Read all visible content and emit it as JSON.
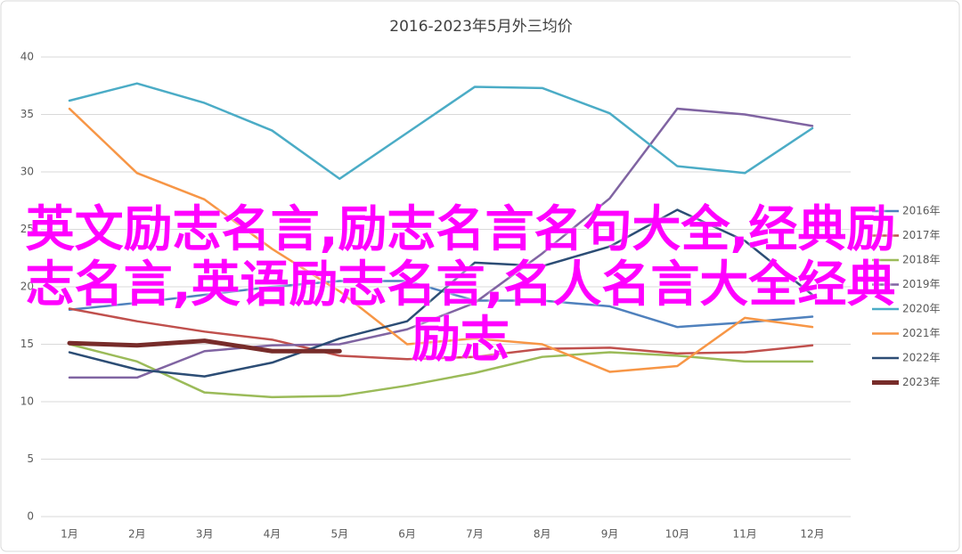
{
  "chart_data": {
    "type": "line",
    "title": "2016-2023年5月外三均价",
    "categories": [
      "1月",
      "2月",
      "3月",
      "4月",
      "5月",
      "6月",
      "7月",
      "8月",
      "9月",
      "10月",
      "11月",
      "12月"
    ],
    "series": [
      {
        "name": "2016年",
        "color": "#4f81bd",
        "values": [
          18.0,
          18.6,
          19.3,
          20.0,
          20.5,
          20.5,
          18.8,
          18.8,
          18.3,
          16.5,
          16.9,
          17.4
        ]
      },
      {
        "name": "2017年",
        "color": "#c0504d",
        "values": [
          18.1,
          17.0,
          16.1,
          15.4,
          14.0,
          13.7,
          13.9,
          14.6,
          14.7,
          14.2,
          14.3,
          14.9
        ]
      },
      {
        "name": "2018年",
        "color": "#9bbb59",
        "values": [
          15.0,
          13.5,
          10.8,
          10.4,
          10.5,
          11.4,
          12.5,
          13.9,
          14.3,
          14.0,
          13.5,
          13.5
        ]
      },
      {
        "name": "2019年",
        "color": "#8064a2",
        "values": [
          12.1,
          12.1,
          14.4,
          14.9,
          15.0,
          16.3,
          18.6,
          22.9,
          27.7,
          35.5,
          35.0,
          34.0
        ]
      },
      {
        "name": "2020年",
        "color": "#4bacc6",
        "values": [
          36.2,
          37.7,
          36.0,
          33.6,
          29.4,
          33.4,
          37.4,
          37.3,
          35.1,
          30.5,
          29.9,
          33.8
        ]
      },
      {
        "name": "2021年",
        "color": "#f79646",
        "values": [
          35.5,
          29.9,
          27.6,
          23.3,
          19.6,
          15.0,
          15.5,
          15.0,
          12.6,
          13.1,
          17.3,
          16.5
        ]
      },
      {
        "name": "2022年",
        "color": "#2c4d75",
        "values": [
          14.3,
          12.8,
          12.2,
          13.4,
          15.5,
          17.0,
          22.1,
          21.8,
          23.5,
          26.7,
          24.0,
          19.3
        ]
      },
      {
        "name": "2023年",
        "color": "#772c2a",
        "values": [
          15.1,
          14.9,
          15.3,
          14.4,
          14.4,
          null,
          null,
          null,
          null,
          null,
          null,
          null
        ]
      }
    ],
    "ylim": [
      0,
      40
    ],
    "yticks": [
      0,
      5,
      10,
      15,
      20,
      25,
      30,
      35,
      40
    ],
    "grid": true,
    "legend": "right"
  },
  "overlay_text": "英文励志名言,励志名言名句大全,经典励志名言,英语励志名言,名人名言大全经典励志"
}
